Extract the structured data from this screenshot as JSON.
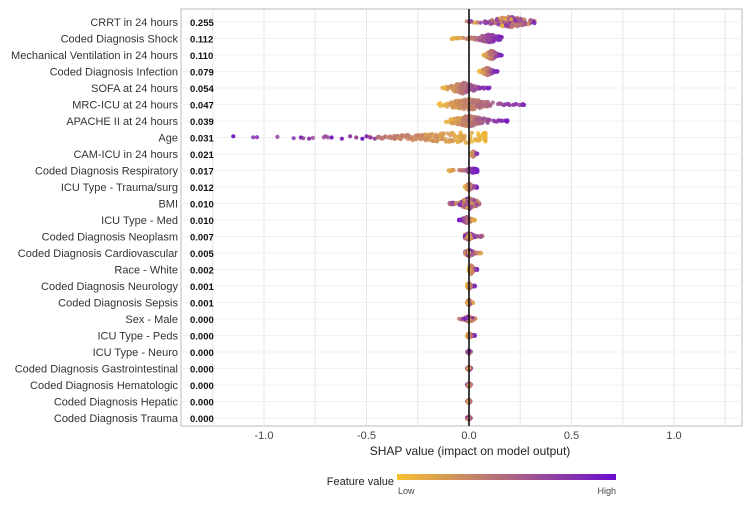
{
  "chart_data": {
    "type": "scatter",
    "subtype": "shap-beeswarm-summary",
    "title": "",
    "xlabel": "SHAP value (impact on model output)",
    "ylabel": "",
    "xlim": [
      -1.3,
      1.35
    ],
    "x_ticks": [
      -1.0,
      -0.5,
      0.0,
      0.5,
      1.0
    ],
    "x_tick_labels": [
      "-1.0",
      "-0.5",
      "0.0",
      "0.5",
      "1.0"
    ],
    "grid": true,
    "colors": {
      "low": "#f5c230",
      "high": "#6a0dcf",
      "axis_line": "#111111",
      "grid": "#e6e6e6"
    },
    "legend": {
      "title": "Feature value",
      "low_label": "Low",
      "high_label": "High",
      "placement": "bottom-center"
    },
    "features": [
      {
        "name": "CRRT in 24 hours",
        "mean_abs_shap": "0.255",
        "min": -0.02,
        "max": 0.33,
        "center": 0.2,
        "density": 1.0,
        "high_side": "mixed"
      },
      {
        "name": "Coded Diagnosis Shock",
        "mean_abs_shap": "0.112",
        "min": -0.09,
        "max": 0.17,
        "center": 0.1,
        "density": 0.7,
        "high_side": "positive"
      },
      {
        "name": "Mechanical Ventilation in 24 hours",
        "mean_abs_shap": "0.110",
        "min": 0.07,
        "max": 0.16,
        "center": 0.11,
        "density": 0.8,
        "high_side": "positive"
      },
      {
        "name": "Coded Diagnosis Infection",
        "mean_abs_shap": "0.079",
        "min": 0.05,
        "max": 0.14,
        "center": 0.09,
        "density": 0.7,
        "high_side": "positive"
      },
      {
        "name": "SOFA at 24 hours",
        "mean_abs_shap": "0.054",
        "min": -0.13,
        "max": 0.1,
        "center": -0.03,
        "density": 1.0,
        "high_side": "positive"
      },
      {
        "name": "MRC-ICU at 24 hours",
        "mean_abs_shap": "0.047",
        "min": -0.15,
        "max": 0.29,
        "center": 0.0,
        "density": 1.0,
        "high_side": "positive"
      },
      {
        "name": "APACHE II at 24 hours",
        "mean_abs_shap": "0.039",
        "min": -0.12,
        "max": 0.19,
        "center": 0.0,
        "density": 1.0,
        "high_side": "positive"
      },
      {
        "name": "Age",
        "mean_abs_shap": "0.031",
        "min": -1.15,
        "max": 0.08,
        "center": 0.0,
        "density": 1.0,
        "high_side": "negative"
      },
      {
        "name": "CAM-ICU in 24 hours",
        "mean_abs_shap": "0.021",
        "min": 0.01,
        "max": 0.04,
        "center": 0.02,
        "density": 0.5,
        "high_side": "positive"
      },
      {
        "name": "Coded Diagnosis Respiratory",
        "mean_abs_shap": "0.017",
        "min": -0.1,
        "max": 0.04,
        "center": 0.02,
        "density": 0.4,
        "high_side": "positive"
      },
      {
        "name": "ICU Type - Trauma/surg",
        "mean_abs_shap": "0.012",
        "min": -0.02,
        "max": 0.04,
        "center": 0.0,
        "density": 0.6,
        "high_side": "positive"
      },
      {
        "name": "BMI",
        "mean_abs_shap": "0.010",
        "min": -0.1,
        "max": 0.06,
        "center": 0.0,
        "density": 1.0,
        "high_side": "mixed"
      },
      {
        "name": "ICU Type - Med",
        "mean_abs_shap": "0.010",
        "min": -0.05,
        "max": 0.03,
        "center": -0.01,
        "density": 0.6,
        "high_side": "negative"
      },
      {
        "name": "Coded Diagnosis Neoplasm",
        "mean_abs_shap": "0.007",
        "min": -0.02,
        "max": 0.07,
        "center": 0.0,
        "density": 0.6,
        "high_side": "mixed"
      },
      {
        "name": "Coded Diagnosis Cardiovascular",
        "mean_abs_shap": "0.005",
        "min": -0.02,
        "max": 0.06,
        "center": 0.0,
        "density": 0.6,
        "high_side": "mixed"
      },
      {
        "name": "Race - White",
        "mean_abs_shap": "0.002",
        "min": 0.0,
        "max": 0.04,
        "center": 0.01,
        "density": 0.8,
        "high_side": "positive"
      },
      {
        "name": "Coded Diagnosis Neurology",
        "mean_abs_shap": "0.001",
        "min": -0.01,
        "max": 0.03,
        "center": 0.0,
        "density": 0.5,
        "high_side": "positive"
      },
      {
        "name": "Coded Diagnosis Sepsis",
        "mean_abs_shap": "0.001",
        "min": -0.01,
        "max": 0.02,
        "center": 0.0,
        "density": 0.5,
        "high_side": "mixed"
      },
      {
        "name": "Sex - Male",
        "mean_abs_shap": "0.000",
        "min": -0.05,
        "max": 0.04,
        "center": 0.0,
        "density": 0.5,
        "high_side": "mixed"
      },
      {
        "name": "ICU Type - Peds",
        "mean_abs_shap": "0.000",
        "min": -0.01,
        "max": 0.03,
        "center": 0.0,
        "density": 0.4,
        "high_side": "positive"
      },
      {
        "name": "ICU Type - Neuro",
        "mean_abs_shap": "0.000",
        "min": -0.01,
        "max": 0.01,
        "center": 0.0,
        "density": 0.3,
        "high_side": "mixed"
      },
      {
        "name": "Coded Diagnosis Gastrointestinal",
        "mean_abs_shap": "0.000",
        "min": -0.01,
        "max": 0.01,
        "center": 0.0,
        "density": 0.3,
        "high_side": "mixed"
      },
      {
        "name": "Coded Diagnosis Hematologic",
        "mean_abs_shap": "0.000",
        "min": -0.01,
        "max": 0.01,
        "center": 0.0,
        "density": 0.3,
        "high_side": "mixed"
      },
      {
        "name": "Coded Diagnosis Hepatic",
        "mean_abs_shap": "0.000",
        "min": -0.01,
        "max": 0.01,
        "center": 0.0,
        "density": 0.3,
        "high_side": "mixed"
      },
      {
        "name": "Coded Diagnosis Trauma",
        "mean_abs_shap": "0.000",
        "min": -0.01,
        "max": 0.01,
        "center": 0.0,
        "density": 0.3,
        "high_side": "mixed"
      }
    ]
  }
}
